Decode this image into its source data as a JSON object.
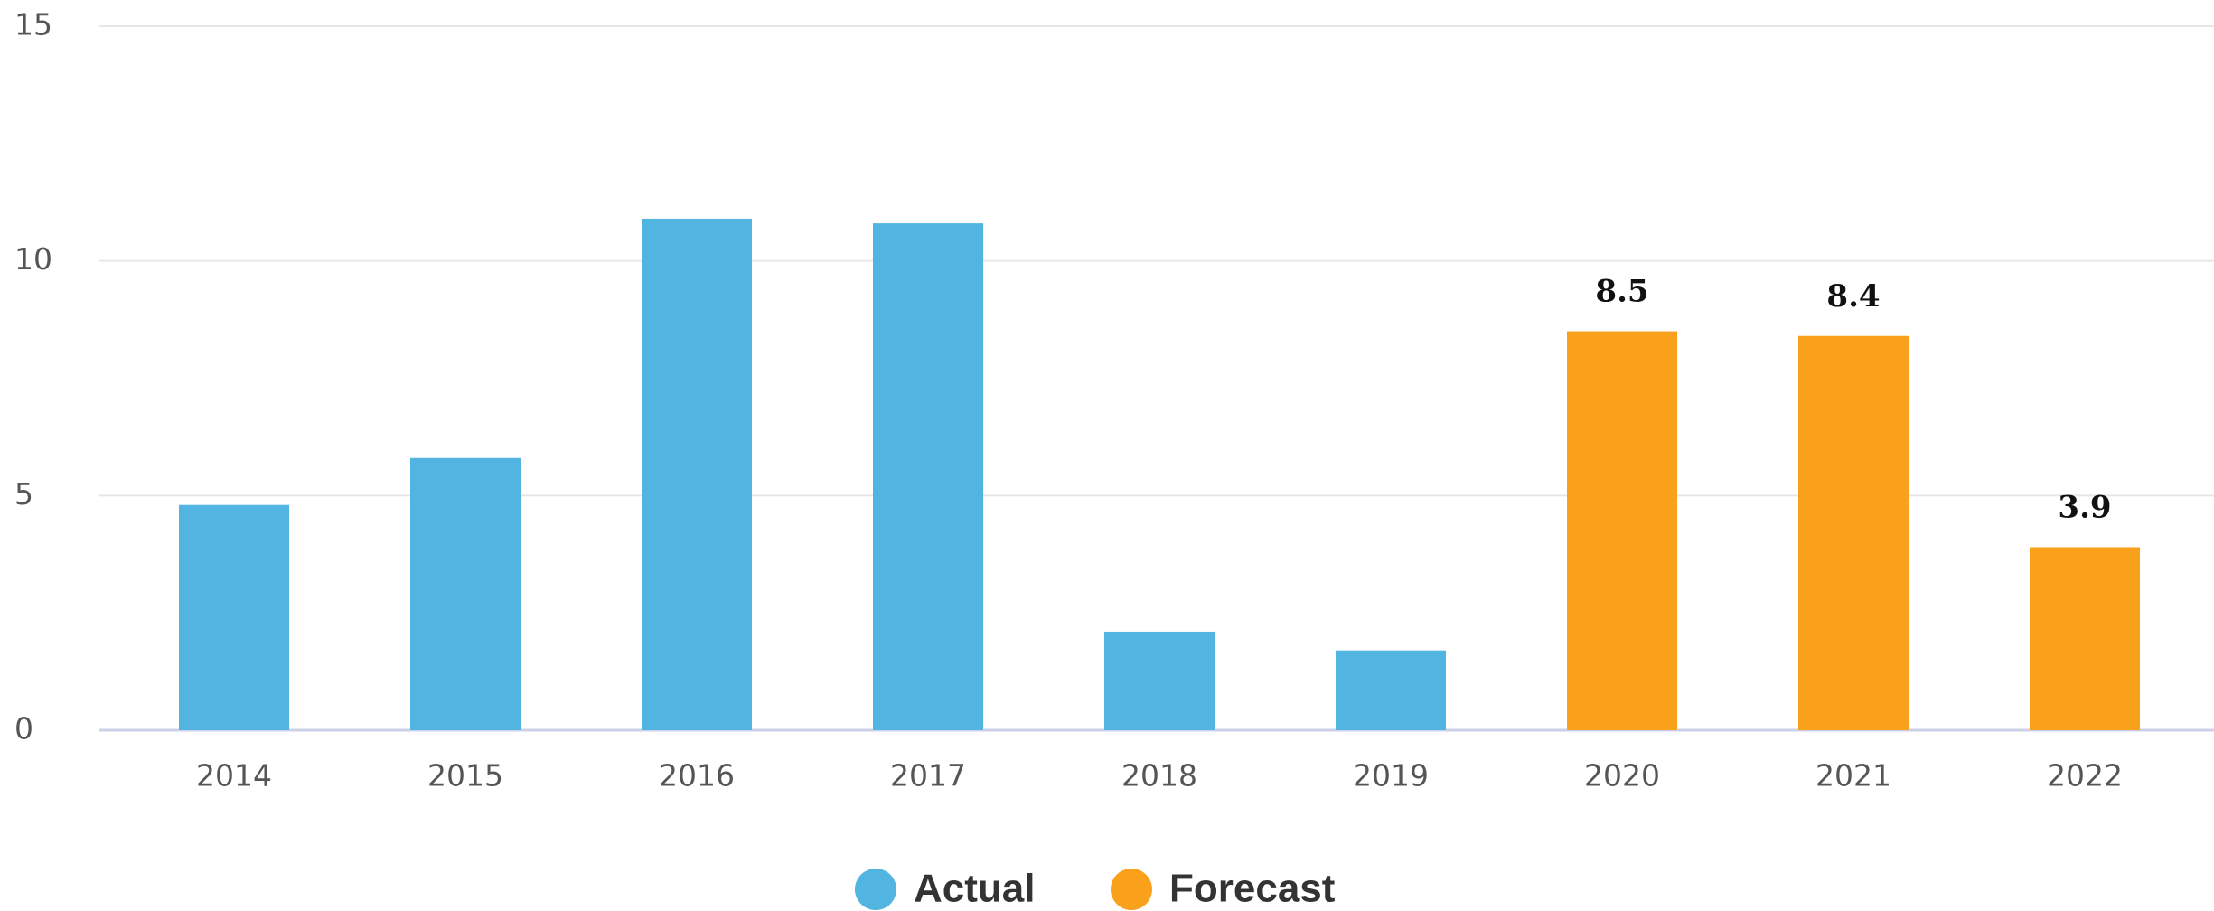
{
  "chart_data": {
    "type": "bar",
    "categories": [
      "2014",
      "2015",
      "2016",
      "2017",
      "2018",
      "2019",
      "2020",
      "2021",
      "2022"
    ],
    "series": [
      {
        "name": "Actual",
        "color": "#52b4e0",
        "values": [
          4.8,
          5.8,
          10.9,
          10.8,
          2.1,
          1.7,
          null,
          null,
          null
        ],
        "show_labels": false
      },
      {
        "name": "Forecast",
        "color": "#f9a11b",
        "values": [
          null,
          null,
          null,
          null,
          null,
          null,
          8.5,
          8.4,
          3.9
        ],
        "show_labels": true
      }
    ],
    "ylim": [
      0,
      15
    ],
    "yticks": [
      0,
      5,
      10,
      15
    ],
    "grid": true,
    "legend": "bottom"
  }
}
